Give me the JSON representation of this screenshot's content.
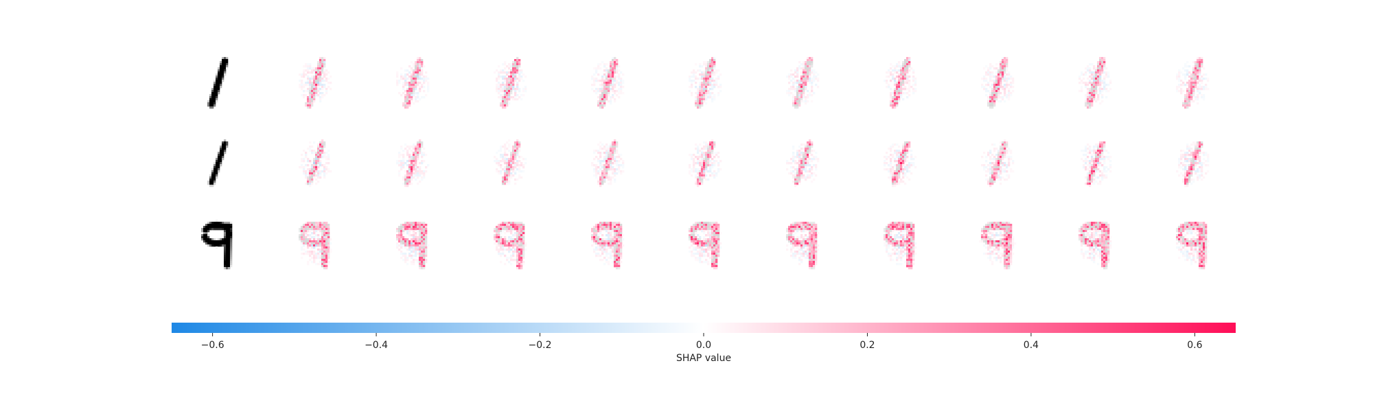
{
  "chart_data": {
    "type": "heatmap",
    "title": "",
    "layout": {
      "rows": 3,
      "columns_per_row": 11,
      "first_column": "input-image",
      "other_columns": "shap-heatmap-per-class"
    },
    "rows": [
      {
        "input_digit": "1",
        "stroke": "thin-slanted"
      },
      {
        "input_digit": "1",
        "stroke": "thin-slanted-short"
      },
      {
        "input_digit": "9",
        "stroke": "curled"
      }
    ],
    "colorbar": {
      "label": "SHAP value",
      "range": [
        -0.65,
        0.65
      ],
      "ticks": [
        -0.6,
        -0.4,
        -0.2,
        0.0,
        0.2,
        0.4,
        0.6
      ],
      "tick_labels": [
        "−0.6",
        "−0.4",
        "−0.2",
        "0.0",
        "0.2",
        "0.4",
        "0.6"
      ],
      "colors": {
        "negative": "#1e88e5",
        "zero": "#ffffff",
        "positive": "#ff0d57"
      }
    }
  }
}
